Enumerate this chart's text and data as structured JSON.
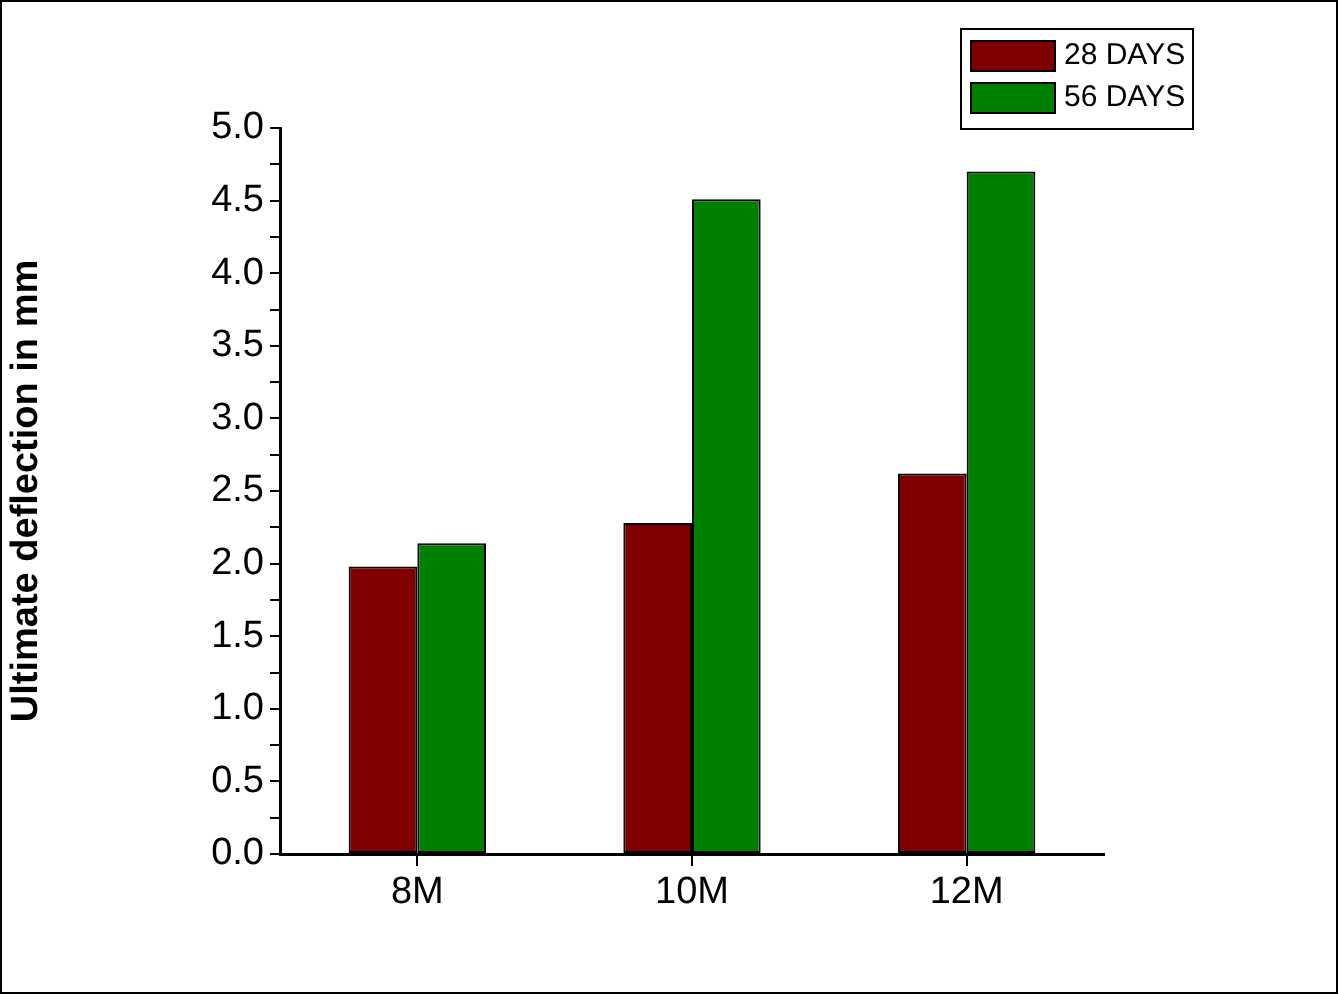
{
  "chart_data": {
    "type": "bar",
    "ylabel": "Ultimate deflection in mm",
    "categories": [
      "8M",
      "10M",
      "12M"
    ],
    "series": [
      {
        "name": "28 DAYS",
        "color": "#800000",
        "values": [
          1.98,
          2.28,
          2.62
        ]
      },
      {
        "name": "56 DAYS",
        "color": "#008000",
        "values": [
          2.14,
          4.51,
          4.7
        ]
      }
    ],
    "ylim": [
      0,
      5
    ],
    "yticks": [
      {
        "value": 0,
        "label": "0.0"
      },
      {
        "value": 0.25,
        "label": null
      },
      {
        "value": 0.5,
        "label": "0.5"
      },
      {
        "value": 0.75,
        "label": null
      },
      {
        "value": 1,
        "label": "1.0"
      },
      {
        "value": 1.25,
        "label": null
      },
      {
        "value": 1.5,
        "label": "1.5"
      },
      {
        "value": 1.75,
        "label": null
      },
      {
        "value": 2,
        "label": "2.0"
      },
      {
        "value": 2.25,
        "label": null
      },
      {
        "value": 2.5,
        "label": "2.5"
      },
      {
        "value": 2.75,
        "label": null
      },
      {
        "value": 3,
        "label": "3.0"
      },
      {
        "value": 3.25,
        "label": null
      },
      {
        "value": 3.5,
        "label": "3.5"
      },
      {
        "value": 3.75,
        "label": null
      },
      {
        "value": 4,
        "label": "4.0"
      },
      {
        "value": 4.25,
        "label": null
      },
      {
        "value": 4.5,
        "label": "4.5"
      },
      {
        "value": 4.75,
        "label": null
      },
      {
        "value": 5,
        "label": "5.0"
      }
    ],
    "grid": false,
    "legend": "top right"
  }
}
